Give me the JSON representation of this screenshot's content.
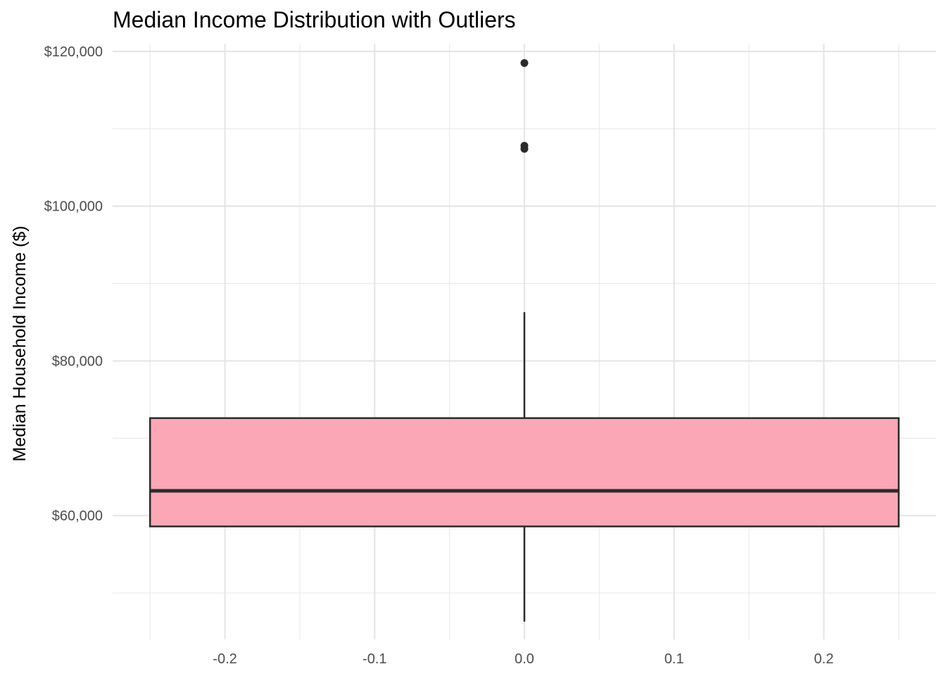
{
  "chart_data": {
    "type": "boxplot",
    "title": "Median Income Distribution with Outliers",
    "xlabel": "",
    "ylabel": "Median Household Income ($)",
    "xlim": [
      -0.275,
      0.275
    ],
    "ylim": [
      44000,
      121000
    ],
    "x_ticks": [
      -0.2,
      -0.1,
      0.0,
      0.1,
      0.2
    ],
    "x_tick_labels": [
      "-0.2",
      "-0.1",
      "0.0",
      "0.1",
      "0.2"
    ],
    "x_minor_ticks": [
      -0.25,
      -0.15,
      -0.05,
      0.05,
      0.15,
      0.25
    ],
    "y_ticks": [
      60000,
      80000,
      100000,
      120000
    ],
    "y_tick_labels": [
      "$60,000",
      "$80,000",
      "$100,000",
      "$120,000"
    ],
    "y_minor_ticks": [
      50000,
      70000,
      90000,
      110000
    ],
    "grid": true,
    "box": {
      "x": 0.0,
      "width": 0.5,
      "min": 46300,
      "q1": 58600,
      "median": 63200,
      "q3": 72600,
      "max": 86300,
      "fill": "#FBA7B5",
      "stroke": "#2b2b2b"
    },
    "outliers": [
      107400,
      107800,
      118500
    ]
  }
}
